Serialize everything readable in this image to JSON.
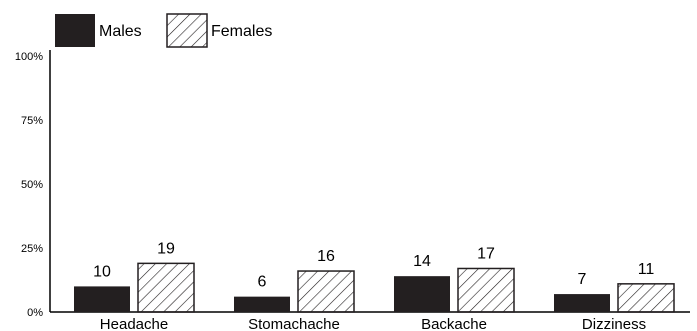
{
  "chart_data": {
    "type": "bar",
    "title": "",
    "xlabel": "",
    "ylabel": "",
    "ylim": [
      0,
      100
    ],
    "y_ticks": [
      "0%",
      "25%",
      "50%",
      "75%",
      "100%"
    ],
    "y_tick_values": [
      0,
      25,
      50,
      75,
      100
    ],
    "categories": [
      "Headache",
      "Stomachache",
      "Backache",
      "Dizziness"
    ],
    "series": [
      {
        "name": "Males",
        "values": [
          10,
          6,
          14,
          7
        ],
        "style": "solid",
        "color": "#231f20"
      },
      {
        "name": "Females",
        "values": [
          19,
          16,
          17,
          11
        ],
        "style": "hatched",
        "color": "#231f20"
      }
    ],
    "legend_position": "top-left",
    "grid": false
  }
}
